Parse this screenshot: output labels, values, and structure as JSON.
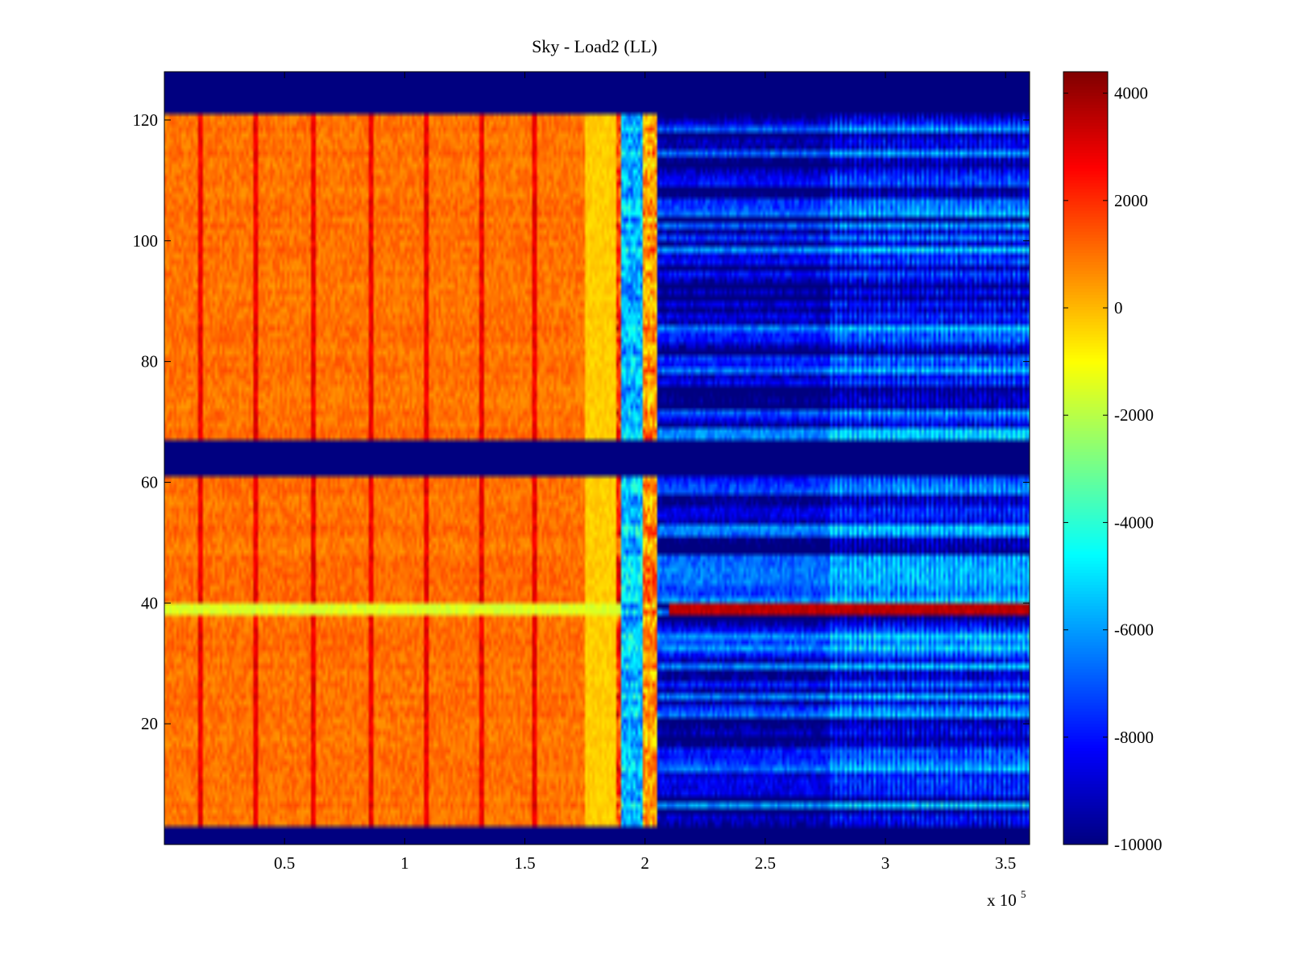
{
  "chart_data": {
    "type": "heatmap",
    "title": "Sky - Load2 (LL)",
    "xlabel": "",
    "ylabel": "",
    "x_multiplier_label": "x 10",
    "x_multiplier_exponent": "5",
    "xlim": [
      0,
      3.6
    ],
    "ylim": [
      0,
      128
    ],
    "x_ticks": [
      0.5,
      1,
      1.5,
      2,
      2.5,
      3,
      3.5
    ],
    "x_tick_labels": [
      "0.5",
      "1",
      "1.5",
      "2",
      "2.5",
      "3",
      "3.5"
    ],
    "y_ticks": [
      20,
      40,
      60,
      80,
      100,
      120
    ],
    "y_tick_labels": [
      "20",
      "40",
      "60",
      "80",
      "100",
      "120"
    ],
    "colorbar": {
      "colormap": "jet",
      "clim": [
        -10000,
        4400
      ],
      "ticks": [
        4000,
        2000,
        0,
        -2000,
        -4000,
        -6000,
        -8000,
        -10000
      ],
      "tick_labels": [
        "4000",
        "2000",
        "0",
        "-2000",
        "-4000",
        "-6000",
        "-8000",
        "-10000"
      ]
    },
    "masked_rows": [
      [
        0,
        3
      ],
      [
        61.5,
        67.5
      ],
      [
        121.5,
        128
      ]
    ],
    "regions": [
      {
        "x_start": 0,
        "x_end": 1.75,
        "value": 1000
      },
      {
        "x_start": 1.75,
        "x_end": 1.88,
        "value": -300
      },
      {
        "x_start": 1.88,
        "x_end": 1.9,
        "value": 2000
      },
      {
        "x_start": 1.9,
        "x_end": 1.99,
        "value": -5500
      },
      {
        "x_start": 1.99,
        "x_end": 2.05,
        "value": 500
      },
      {
        "x_start": 2.05,
        "x_end": 2.77,
        "value": -8500
      },
      {
        "x_start": 2.77,
        "x_end": 3.6,
        "value": -7000
      }
    ],
    "dark_vertical_lines_x": [
      0.15,
      0.38,
      0.62,
      0.86,
      1.09,
      1.32,
      1.54
    ],
    "highlight_row": {
      "y": 39,
      "values": [
        {
          "x_start": 0,
          "x_end": 1.9,
          "value": -1500
        },
        {
          "x_start": 2.1,
          "x_end": 3.6,
          "value": 3500
        }
      ]
    }
  },
  "colors": {
    "background": "#ffffff",
    "axis": "#000000"
  }
}
